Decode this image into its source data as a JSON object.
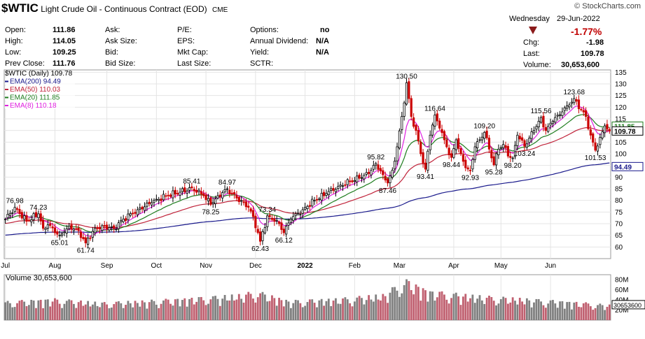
{
  "header": {
    "symbol": "$WTIC",
    "name": "Light Crude Oil - Continuous Contract (EOD)",
    "exchange": "CME",
    "brand": "© StockCharts.com",
    "fields": [
      {
        "label": "Open:",
        "value": "111.86"
      },
      {
        "label": "High:",
        "value": "114.05"
      },
      {
        "label": "Low:",
        "value": "109.25"
      },
      {
        "label": "Prev Close:",
        "value": "111.76"
      },
      {
        "label": "Ask:",
        "value": ""
      },
      {
        "label": "Ask Size:",
        "value": ""
      },
      {
        "label": "Bid:",
        "value": ""
      },
      {
        "label": "Bid Size:",
        "value": ""
      },
      {
        "label": "P/E:",
        "value": ""
      },
      {
        "label": "EPS:",
        "value": ""
      },
      {
        "label": "Mkt Cap:",
        "value": ""
      },
      {
        "label": "Last Size:",
        "value": ""
      },
      {
        "label": "Options:",
        "value": "no"
      },
      {
        "label": "Annual Dividend:",
        "value": "N/A"
      },
      {
        "label": "Yield:",
        "value": "N/A"
      },
      {
        "label": "SCTR:",
        "value": ""
      }
    ],
    "day": "Wednesday",
    "date": "29-Jun-2022",
    "pct_change": "-1.77%",
    "chg_label": "Chg:",
    "chg_value": "-1.98",
    "last_label": "Last:",
    "last_value": "109.78",
    "volume_label": "Volume:",
    "volume_value": "30,653,600"
  },
  "chart_data": {
    "type": "candlestick",
    "legend": [
      {
        "text": "$WTIC (Daily) 109.78",
        "color": "#000000"
      },
      {
        "text": "EMA(200) 94.49",
        "color": "#1a1a8c"
      },
      {
        "text": "EMA(50) 110.03",
        "color": "#c0233a"
      },
      {
        "text": "EMA(20) 111.85",
        "color": "#1e7d1e"
      },
      {
        "text": "EMA(8) 110.18",
        "color": "#e020e0"
      }
    ],
    "price_axis": {
      "ylim": [
        55,
        136
      ],
      "ticks": [
        60,
        65,
        70,
        75,
        80,
        85,
        90,
        95,
        100,
        105,
        110,
        115,
        120,
        125,
        130,
        135
      ]
    },
    "x_labels": [
      {
        "text": "Jul",
        "i": 0
      },
      {
        "text": "Aug",
        "i": 21
      },
      {
        "text": "Sep",
        "i": 43
      },
      {
        "text": "Oct",
        "i": 64
      },
      {
        "text": "Nov",
        "i": 85
      },
      {
        "text": "Dec",
        "i": 106
      },
      {
        "text": "2022",
        "i": 127
      },
      {
        "text": "Feb",
        "i": 148
      },
      {
        "text": "Mar",
        "i": 167
      },
      {
        "text": "Apr",
        "i": 190
      },
      {
        "text": "May",
        "i": 210
      },
      {
        "text": "Jun",
        "i": 231
      }
    ],
    "anchors": [
      [
        0,
        72.0
      ],
      [
        4,
        76.98
      ],
      [
        9,
        71.0
      ],
      [
        14,
        74.23
      ],
      [
        16,
        68.0
      ],
      [
        18,
        69.5
      ],
      [
        23,
        65.01
      ],
      [
        27,
        69.0
      ],
      [
        31,
        67.0
      ],
      [
        34,
        61.74
      ],
      [
        38,
        68.0
      ],
      [
        42,
        69.0
      ],
      [
        46,
        68.0
      ],
      [
        50,
        72.0
      ],
      [
        56,
        76.0
      ],
      [
        62,
        79.0
      ],
      [
        68,
        82.0
      ],
      [
        74,
        83.5
      ],
      [
        79,
        85.41
      ],
      [
        84,
        82.0
      ],
      [
        87,
        78.25
      ],
      [
        90,
        82.0
      ],
      [
        94,
        84.97
      ],
      [
        98,
        81.0
      ],
      [
        101,
        79.0
      ],
      [
        103,
        77.0
      ],
      [
        105,
        73.0
      ],
      [
        108,
        62.43
      ],
      [
        111,
        73.34
      ],
      [
        114,
        71.0
      ],
      [
        116,
        70.0
      ],
      [
        118,
        66.12
      ],
      [
        121,
        72.0
      ],
      [
        126,
        76.0
      ],
      [
        131,
        80.0
      ],
      [
        136,
        83.0
      ],
      [
        141,
        86.0
      ],
      [
        146,
        88.0
      ],
      [
        150,
        89.5
      ],
      [
        154,
        91.5
      ],
      [
        157,
        95.82
      ],
      [
        160,
        91.0
      ],
      [
        162,
        87.46
      ],
      [
        164,
        93.0
      ],
      [
        166,
        103.0
      ],
      [
        168,
        116.0
      ],
      [
        170,
        130.5
      ],
      [
        172,
        116.0
      ],
      [
        174,
        110.0
      ],
      [
        176,
        100.0
      ],
      [
        178,
        93.41
      ],
      [
        180,
        108.0
      ],
      [
        182,
        116.64
      ],
      [
        184,
        111.0
      ],
      [
        187,
        103.0
      ],
      [
        189,
        98.44
      ],
      [
        191,
        106.0
      ],
      [
        193,
        100.0
      ],
      [
        195,
        94.0
      ],
      [
        197,
        92.93
      ],
      [
        199,
        103.0
      ],
      [
        201,
        106.0
      ],
      [
        203,
        109.2
      ],
      [
        205,
        102.0
      ],
      [
        207,
        95.28
      ],
      [
        209,
        102.0
      ],
      [
        211,
        104.0
      ],
      [
        213,
        99.0
      ],
      [
        215,
        98.2
      ],
      [
        217,
        108.0
      ],
      [
        220,
        103.24
      ],
      [
        224,
        110.0
      ],
      [
        227,
        115.56
      ],
      [
        229,
        110.0
      ],
      [
        232,
        114.0
      ],
      [
        236,
        118.0
      ],
      [
        239,
        121.0
      ],
      [
        241,
        123.68
      ],
      [
        244,
        119.0
      ],
      [
        246,
        116.0
      ],
      [
        248,
        108.0
      ],
      [
        250,
        101.53
      ],
      [
        252,
        107.0
      ],
      [
        254,
        112.0
      ],
      [
        256,
        109.78
      ]
    ],
    "annotations": [
      {
        "text": "76.98",
        "i": 4,
        "v": 76.98,
        "pos": "above"
      },
      {
        "text": "74.23",
        "i": 14,
        "v": 74.23,
        "pos": "above"
      },
      {
        "text": "65.01",
        "i": 23,
        "v": 65.01,
        "pos": "below"
      },
      {
        "text": "61.74",
        "i": 34,
        "v": 61.74,
        "pos": "below"
      },
      {
        "text": "85.41",
        "i": 79,
        "v": 85.41,
        "pos": "above"
      },
      {
        "text": "78.25",
        "i": 87,
        "v": 78.25,
        "pos": "below"
      },
      {
        "text": "84.97",
        "i": 94,
        "v": 84.97,
        "pos": "above"
      },
      {
        "text": "62.43",
        "i": 108,
        "v": 62.43,
        "pos": "below"
      },
      {
        "text": "73.34",
        "i": 111,
        "v": 73.34,
        "pos": "above"
      },
      {
        "text": "66.12",
        "i": 118,
        "v": 66.12,
        "pos": "below"
      },
      {
        "text": "95.82",
        "i": 157,
        "v": 95.82,
        "pos": "above"
      },
      {
        "text": "87.46",
        "i": 162,
        "v": 87.46,
        "pos": "below"
      },
      {
        "text": "130.50",
        "i": 170,
        "v": 130.5,
        "pos": "above"
      },
      {
        "text": "93.41",
        "i": 178,
        "v": 93.41,
        "pos": "below"
      },
      {
        "text": "116.64",
        "i": 182,
        "v": 116.64,
        "pos": "above"
      },
      {
        "text": "98.44",
        "i": 189,
        "v": 98.44,
        "pos": "below"
      },
      {
        "text": "92.93",
        "i": 197,
        "v": 92.93,
        "pos": "below"
      },
      {
        "text": "109.20",
        "i": 203,
        "v": 109.2,
        "pos": "above"
      },
      {
        "text": "95.28",
        "i": 207,
        "v": 95.28,
        "pos": "below"
      },
      {
        "text": "98.20",
        "i": 215,
        "v": 98.2,
        "pos": "below"
      },
      {
        "text": "103.24",
        "i": 220,
        "v": 103.24,
        "pos": "below"
      },
      {
        "text": "115.56",
        "i": 227,
        "v": 115.56,
        "pos": "above"
      },
      {
        "text": "123.68",
        "i": 241,
        "v": 123.68,
        "pos": "above"
      },
      {
        "text": "101.53",
        "i": 250,
        "v": 101.53,
        "pos": "below"
      }
    ],
    "price_tags": [
      {
        "text": "111.85",
        "v": 111.85,
        "color": "#1e7d1e"
      },
      {
        "text": "109.78",
        "v": 109.78,
        "color": "#000000"
      },
      {
        "text": "94.49",
        "v": 94.49,
        "color": "#1a1a8c"
      }
    ],
    "volume": {
      "legend": "Volume 30,653,600",
      "ylim": [
        0,
        90
      ],
      "ticks": [
        {
          "v": 20,
          "text": "20M"
        },
        {
          "v": 40,
          "text": "40M"
        },
        {
          "v": 60,
          "text": "60M"
        },
        {
          "v": 80,
          "text": "80M"
        }
      ],
      "last_tag": "30653600",
      "peaks": [
        [
          0,
          38
        ],
        [
          20,
          44
        ],
        [
          40,
          36
        ],
        [
          60,
          40
        ],
        [
          80,
          46
        ],
        [
          100,
          52
        ],
        [
          106,
          60
        ],
        [
          120,
          40
        ],
        [
          140,
          44
        ],
        [
          160,
          52
        ],
        [
          166,
          72
        ],
        [
          170,
          82
        ],
        [
          180,
          60
        ],
        [
          200,
          50
        ],
        [
          220,
          44
        ],
        [
          240,
          38
        ],
        [
          256,
          31
        ]
      ]
    },
    "colors": {
      "up": "#000000",
      "down": "#cc0000",
      "vol_up": "#808080",
      "vol_down": "#c06070",
      "grid": "#e4e4e4"
    }
  }
}
